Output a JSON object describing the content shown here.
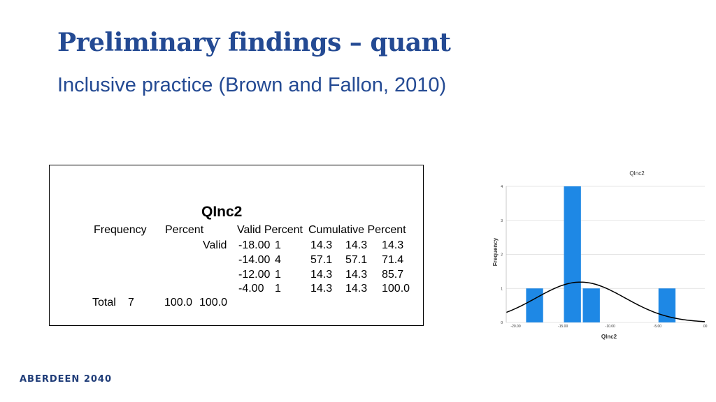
{
  "slide": {
    "title": "Preliminary findings – quant",
    "subtitle": "Inclusive practice (Brown and Fallon, 2010)",
    "footer": "ABERDEEN 2040"
  },
  "table": {
    "title": "QInc2",
    "headers": [
      "Frequency",
      "Percent",
      "Valid Percent",
      "Cumulative Percent"
    ],
    "valid_label": "Valid",
    "rows": [
      {
        "value": "-18.00",
        "frequency": "1",
        "percent": "14.3",
        "valid_percent": "14.3",
        "cumulative_percent": "14.3"
      },
      {
        "value": "-14.00",
        "frequency": "4",
        "percent": "57.1",
        "valid_percent": "57.1",
        "cumulative_percent": "71.4"
      },
      {
        "value": "-12.00",
        "frequency": "1",
        "percent": "14.3",
        "valid_percent": "14.3",
        "cumulative_percent": "85.7"
      },
      {
        "value": "-4.00",
        "frequency": "1",
        "percent": "14.3",
        "valid_percent": "14.3",
        "cumulative_percent": "100.0"
      }
    ],
    "total": {
      "label": "Total",
      "frequency": "7",
      "percent": "100.0",
      "valid_percent": "100.0"
    }
  },
  "chart_data": {
    "type": "bar",
    "title": "QInc2",
    "xlabel": "QInc2",
    "ylabel": "Frequency",
    "xlim": [
      -21,
      0
    ],
    "ylim": [
      0,
      4
    ],
    "xticks": [
      -20,
      -15,
      -10,
      -5,
      0
    ],
    "xtick_labels": [
      "-20.00",
      "-15.00",
      "-10.00",
      "-5.00",
      ".00"
    ],
    "yticks": [
      0,
      1,
      2,
      3,
      4
    ],
    "ytick_labels": [
      "0",
      "1",
      "2",
      "3",
      "4"
    ],
    "bar_width": 1.8,
    "bars": [
      {
        "x": -18,
        "value": 1
      },
      {
        "x": -14,
        "value": 4
      },
      {
        "x": -12,
        "value": 1
      },
      {
        "x": -4,
        "value": 1
      }
    ],
    "normal_curve": {
      "mean": -13.14,
      "sd": 4.71,
      "n": 7,
      "bin_width": 2
    },
    "bar_color": "#1e88e5",
    "curve_color": "#000000",
    "grid": true
  }
}
